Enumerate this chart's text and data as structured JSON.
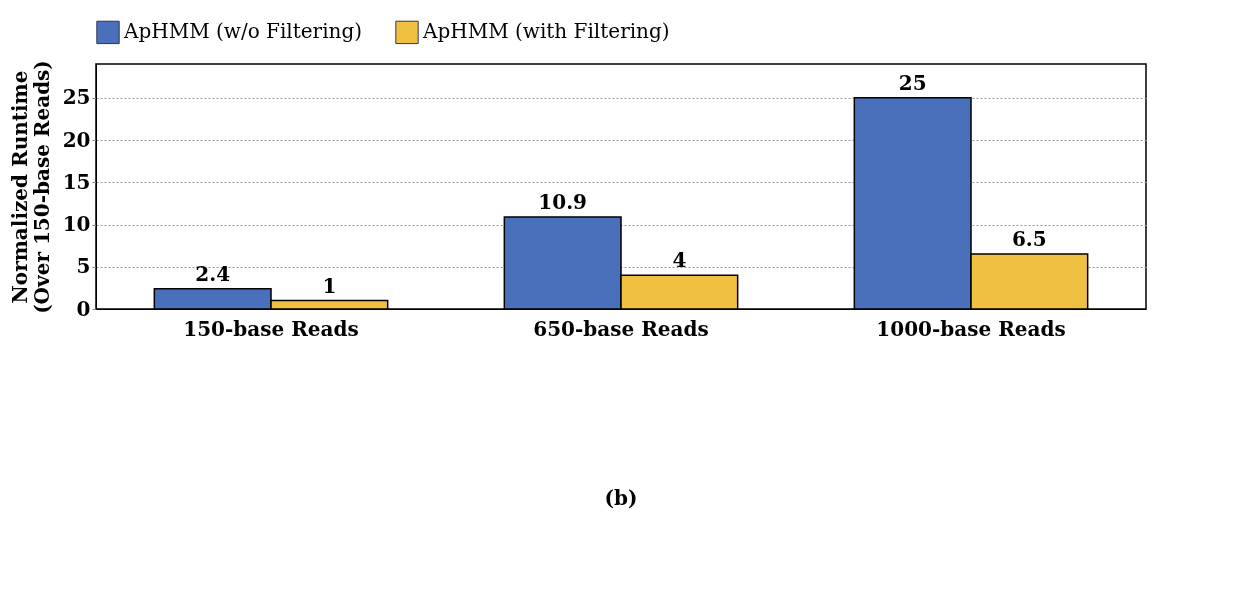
{
  "chart_data": {
    "type": "bar",
    "ylabel": "Normalized Runtime\n(Over 150-base Reads)",
    "categories": [
      "150-base Reads",
      "650-base Reads",
      "1000-base Reads"
    ],
    "series": [
      {
        "name": "ApHMM (w/o Filtering)",
        "color": "#4a70bb",
        "values": [
          2.4,
          10.9,
          25
        ]
      },
      {
        "name": "ApHMM (with Filtering)",
        "color": "#f0c042",
        "values": [
          1,
          4,
          6.5
        ]
      }
    ],
    "ylim": [
      0,
      29
    ],
    "yticks": [
      0,
      5,
      10,
      15,
      20,
      25
    ],
    "grid": "y",
    "legend": "top",
    "data_labels": true,
    "annotations": [
      "(b)"
    ]
  }
}
